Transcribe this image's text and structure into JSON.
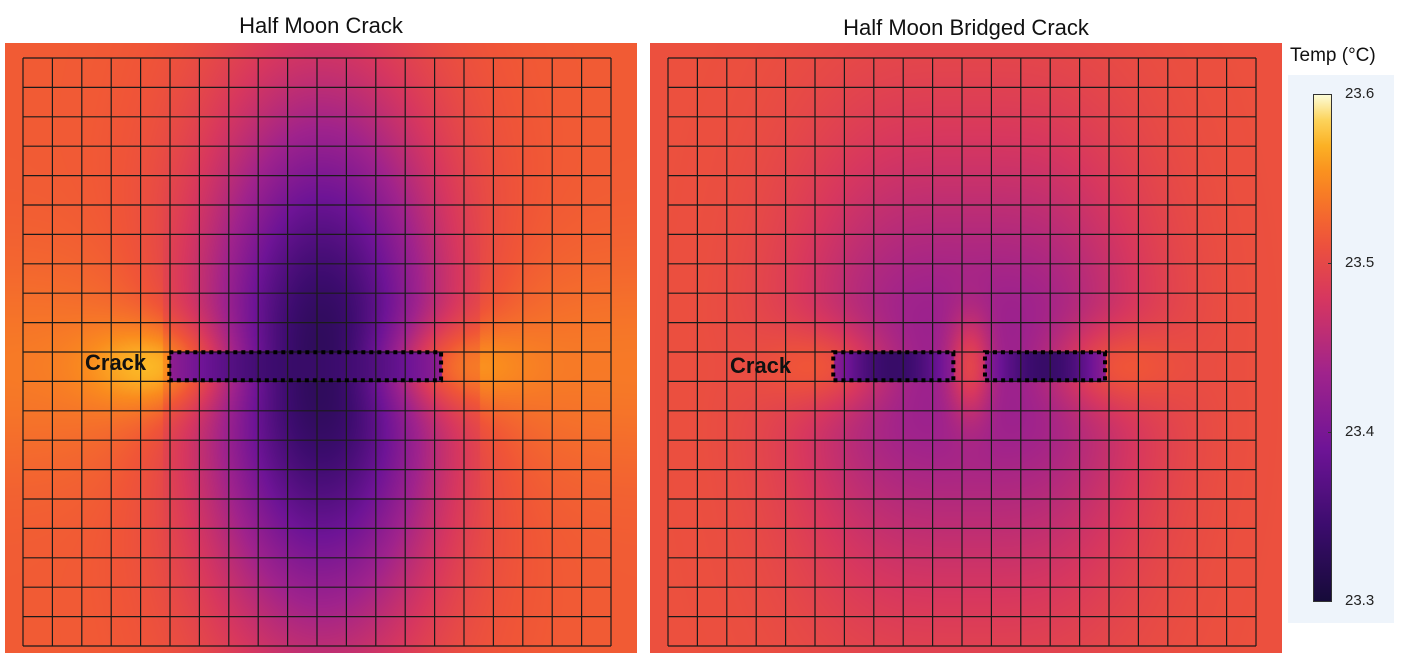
{
  "chart_data": [
    {
      "type": "heatmap",
      "title": "Half Moon Crack",
      "annotation": "Crack",
      "crack_segments": [
        [
          0.26,
          0.69
        ]
      ],
      "grid": true,
      "colormap": "inferno",
      "note_values": {
        "edge": 23.52,
        "crack_tips": 23.56,
        "center_min": 23.32
      }
    },
    {
      "type": "heatmap",
      "title": "Half Moon Bridged Crack",
      "annotation": "Crack",
      "crack_segments": [
        [
          0.29,
          0.48
        ],
        [
          0.53,
          0.72
        ]
      ],
      "grid": true,
      "colormap": "inferno",
      "note_values": {
        "edge": 23.52,
        "bridge": 23.57,
        "center_min": 23.38
      }
    }
  ],
  "colorbar": {
    "title": "Temp (°C)",
    "min": 23.3,
    "max": 23.6,
    "ticks": [
      "23.6",
      "23.5",
      "23.4",
      "23.3"
    ],
    "tick_values": [
      23.6,
      23.5,
      23.4,
      23.3
    ]
  }
}
